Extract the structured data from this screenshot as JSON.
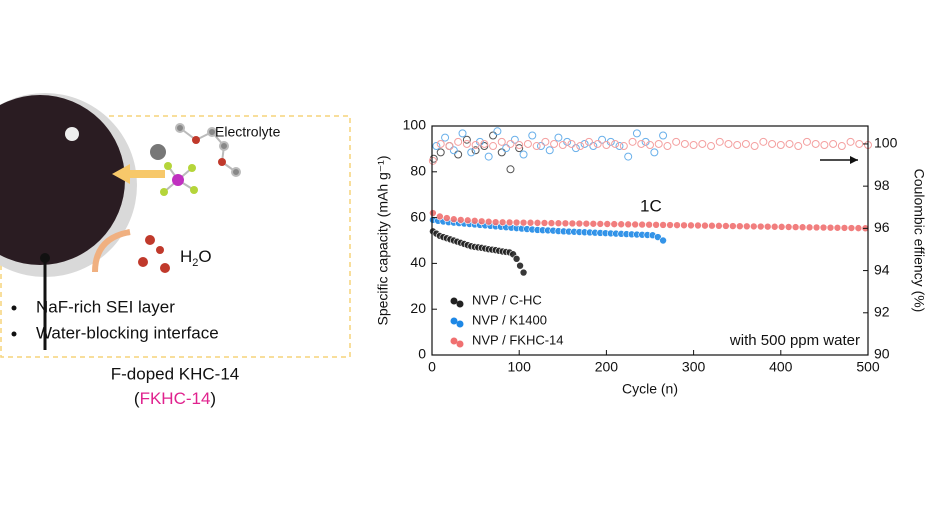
{
  "schematic": {
    "electrolyte": "Electrolyte",
    "water": {
      "main": "H",
      "sub": "2",
      "rest": "O"
    },
    "bullets": [
      "NaF-rich SEI layer",
      "Water-blocking interface"
    ],
    "caption": "F-doped KHC-14",
    "caption2": {
      "open": "(",
      "label": "FKHC-14",
      "close": ")"
    }
  },
  "chart_data": {
    "type": "scatter",
    "xlabel": "Cycle (n)",
    "ylabel": "Specific capacity (mAh g⁻¹)",
    "y2label": "Coulombic effiency (%)",
    "annotations": [
      "1C",
      "with 500 ppm water"
    ],
    "xlim": [
      0,
      500
    ],
    "xticks": [
      0,
      100,
      200,
      300,
      400,
      500
    ],
    "ylim": [
      0,
      100
    ],
    "yticks": [
      0,
      20,
      40,
      60,
      80,
      100
    ],
    "y2lim": [
      90,
      100.85
    ],
    "y2ticks": [
      90,
      92,
      94,
      96,
      98,
      100
    ],
    "legend": "lower left",
    "series": [
      {
        "name": "NVP / C-HC",
        "color": "#222222",
        "marker": "filled",
        "axis": "y",
        "x": [
          1,
          5,
          9,
          13,
          17,
          21,
          25,
          29,
          33,
          37,
          41,
          45,
          49,
          53,
          57,
          61,
          65,
          69,
          73,
          77,
          81,
          85,
          89,
          93,
          97,
          101,
          105
        ],
        "values": [
          54,
          53,
          52,
          51.5,
          51,
          50.5,
          50,
          49.5,
          49,
          48.5,
          48,
          47.5,
          47.2,
          47,
          46.8,
          46.5,
          46.2,
          46,
          45.8,
          45.5,
          45.2,
          45,
          44.8,
          44,
          42,
          39,
          36
        ]
      },
      {
        "name": "NVP / K1400",
        "color": "#1e88e5",
        "marker": "filled",
        "axis": "y",
        "x": [
          1,
          7,
          13,
          19,
          25,
          31,
          37,
          43,
          49,
          55,
          61,
          67,
          73,
          79,
          85,
          91,
          97,
          103,
          109,
          115,
          121,
          127,
          133,
          139,
          145,
          151,
          157,
          163,
          169,
          175,
          181,
          187,
          193,
          199,
          205,
          211,
          217,
          223,
          229,
          235,
          241,
          247,
          253,
          259,
          265
        ],
        "values": [
          59,
          58.6,
          58.3,
          58,
          57.8,
          57.6,
          57.4,
          57.2,
          57,
          56.8,
          56.6,
          56.4,
          56.2,
          56,
          55.8,
          55.6,
          55.4,
          55.2,
          55,
          54.8,
          54.6,
          54.5,
          54.4,
          54.3,
          54.1,
          54,
          53.9,
          53.8,
          53.7,
          53.6,
          53.5,
          53.4,
          53.3,
          53.2,
          53.1,
          53,
          52.9,
          52.8,
          52.7,
          52.6,
          52.5,
          52.4,
          52.3,
          51.5,
          50
        ]
      },
      {
        "name": "NVP / FKHC-14",
        "color": "#f07070",
        "marker": "filled",
        "axis": "y",
        "x": [
          1,
          9,
          17,
          25,
          33,
          41,
          49,
          57,
          65,
          73,
          81,
          89,
          97,
          105,
          113,
          121,
          129,
          137,
          145,
          153,
          161,
          169,
          177,
          185,
          193,
          201,
          209,
          217,
          225,
          233,
          241,
          249,
          257,
          265,
          273,
          281,
          289,
          297,
          305,
          313,
          321,
          329,
          337,
          345,
          353,
          361,
          369,
          377,
          385,
          393,
          401,
          409,
          417,
          425,
          433,
          441,
          449,
          457,
          465,
          473,
          481,
          489,
          497
        ],
        "values": [
          62,
          60.5,
          59.8,
          59.3,
          59,
          58.8,
          58.6,
          58.4,
          58.2,
          58,
          57.95,
          57.9,
          57.85,
          57.8,
          57.75,
          57.7,
          57.65,
          57.6,
          57.55,
          57.5,
          57.45,
          57.4,
          57.35,
          57.3,
          57.25,
          57.2,
          57.15,
          57.1,
          57.05,
          57,
          56.95,
          56.9,
          56.85,
          56.8,
          56.75,
          56.7,
          56.65,
          56.6,
          56.55,
          56.5,
          56.45,
          56.4,
          56.35,
          56.3,
          56.25,
          56.2,
          56.15,
          56.1,
          56.05,
          56,
          55.95,
          55.9,
          55.85,
          55.8,
          55.75,
          55.7,
          55.65,
          55.6,
          55.55,
          55.5,
          55.45,
          55.4,
          55.35
        ]
      },
      {
        "color": "#555555",
        "marker": "open",
        "axis": "y2",
        "x": [
          2,
          10,
          20,
          30,
          40,
          50,
          60,
          70,
          80,
          90,
          100
        ],
        "values": [
          99.3,
          99.6,
          99.9,
          99.5,
          100.2,
          99.7,
          99.9,
          100.4,
          99.6,
          98.8,
          99.8
        ]
      },
      {
        "color": "#6ab0ea",
        "marker": "open",
        "axis": "y2",
        "x": [
          5,
          15,
          25,
          35,
          45,
          55,
          65,
          75,
          85,
          95,
          105,
          115,
          125,
          135,
          145,
          155,
          165,
          175,
          185,
          195,
          205,
          215,
          225,
          235,
          245,
          255,
          265
        ],
        "values": [
          99.9,
          100.3,
          99.7,
          100.5,
          99.6,
          100.1,
          99.4,
          100.6,
          99.8,
          100.2,
          99.5,
          100.4,
          99.9,
          99.7,
          100.3,
          100.1,
          99.8,
          100,
          99.9,
          100.2,
          100.1,
          99.9,
          99.4,
          100.5,
          100.1,
          99.6,
          100.4
        ]
      },
      {
        "color": "#f4a0a0",
        "marker": "open",
        "axis": "y2",
        "x": [
          1,
          10,
          20,
          30,
          40,
          50,
          60,
          70,
          80,
          90,
          100,
          110,
          120,
          130,
          140,
          150,
          160,
          170,
          180,
          190,
          200,
          210,
          220,
          230,
          240,
          250,
          260,
          270,
          280,
          290,
          300,
          310,
          320,
          330,
          340,
          350,
          360,
          370,
          380,
          390,
          400,
          410,
          420,
          430,
          440,
          450,
          460,
          470,
          480,
          490,
          500
        ],
        "values": [
          99.2,
          100,
          99.9,
          100.1,
          100,
          99.95,
          100,
          99.9,
          100.1,
          100,
          99.95,
          100,
          99.9,
          100.1,
          100,
          99.95,
          100,
          99.9,
          100.1,
          100,
          99.95,
          100,
          99.9,
          100.1,
          100,
          99.95,
          100,
          99.9,
          100.1,
          100,
          99.95,
          100,
          99.9,
          100.1,
          100,
          99.95,
          100,
          99.9,
          100.1,
          100,
          99.95,
          100,
          99.9,
          100.1,
          100,
          99.95,
          100,
          99.9,
          100.1,
          100,
          99.95
        ]
      }
    ]
  }
}
